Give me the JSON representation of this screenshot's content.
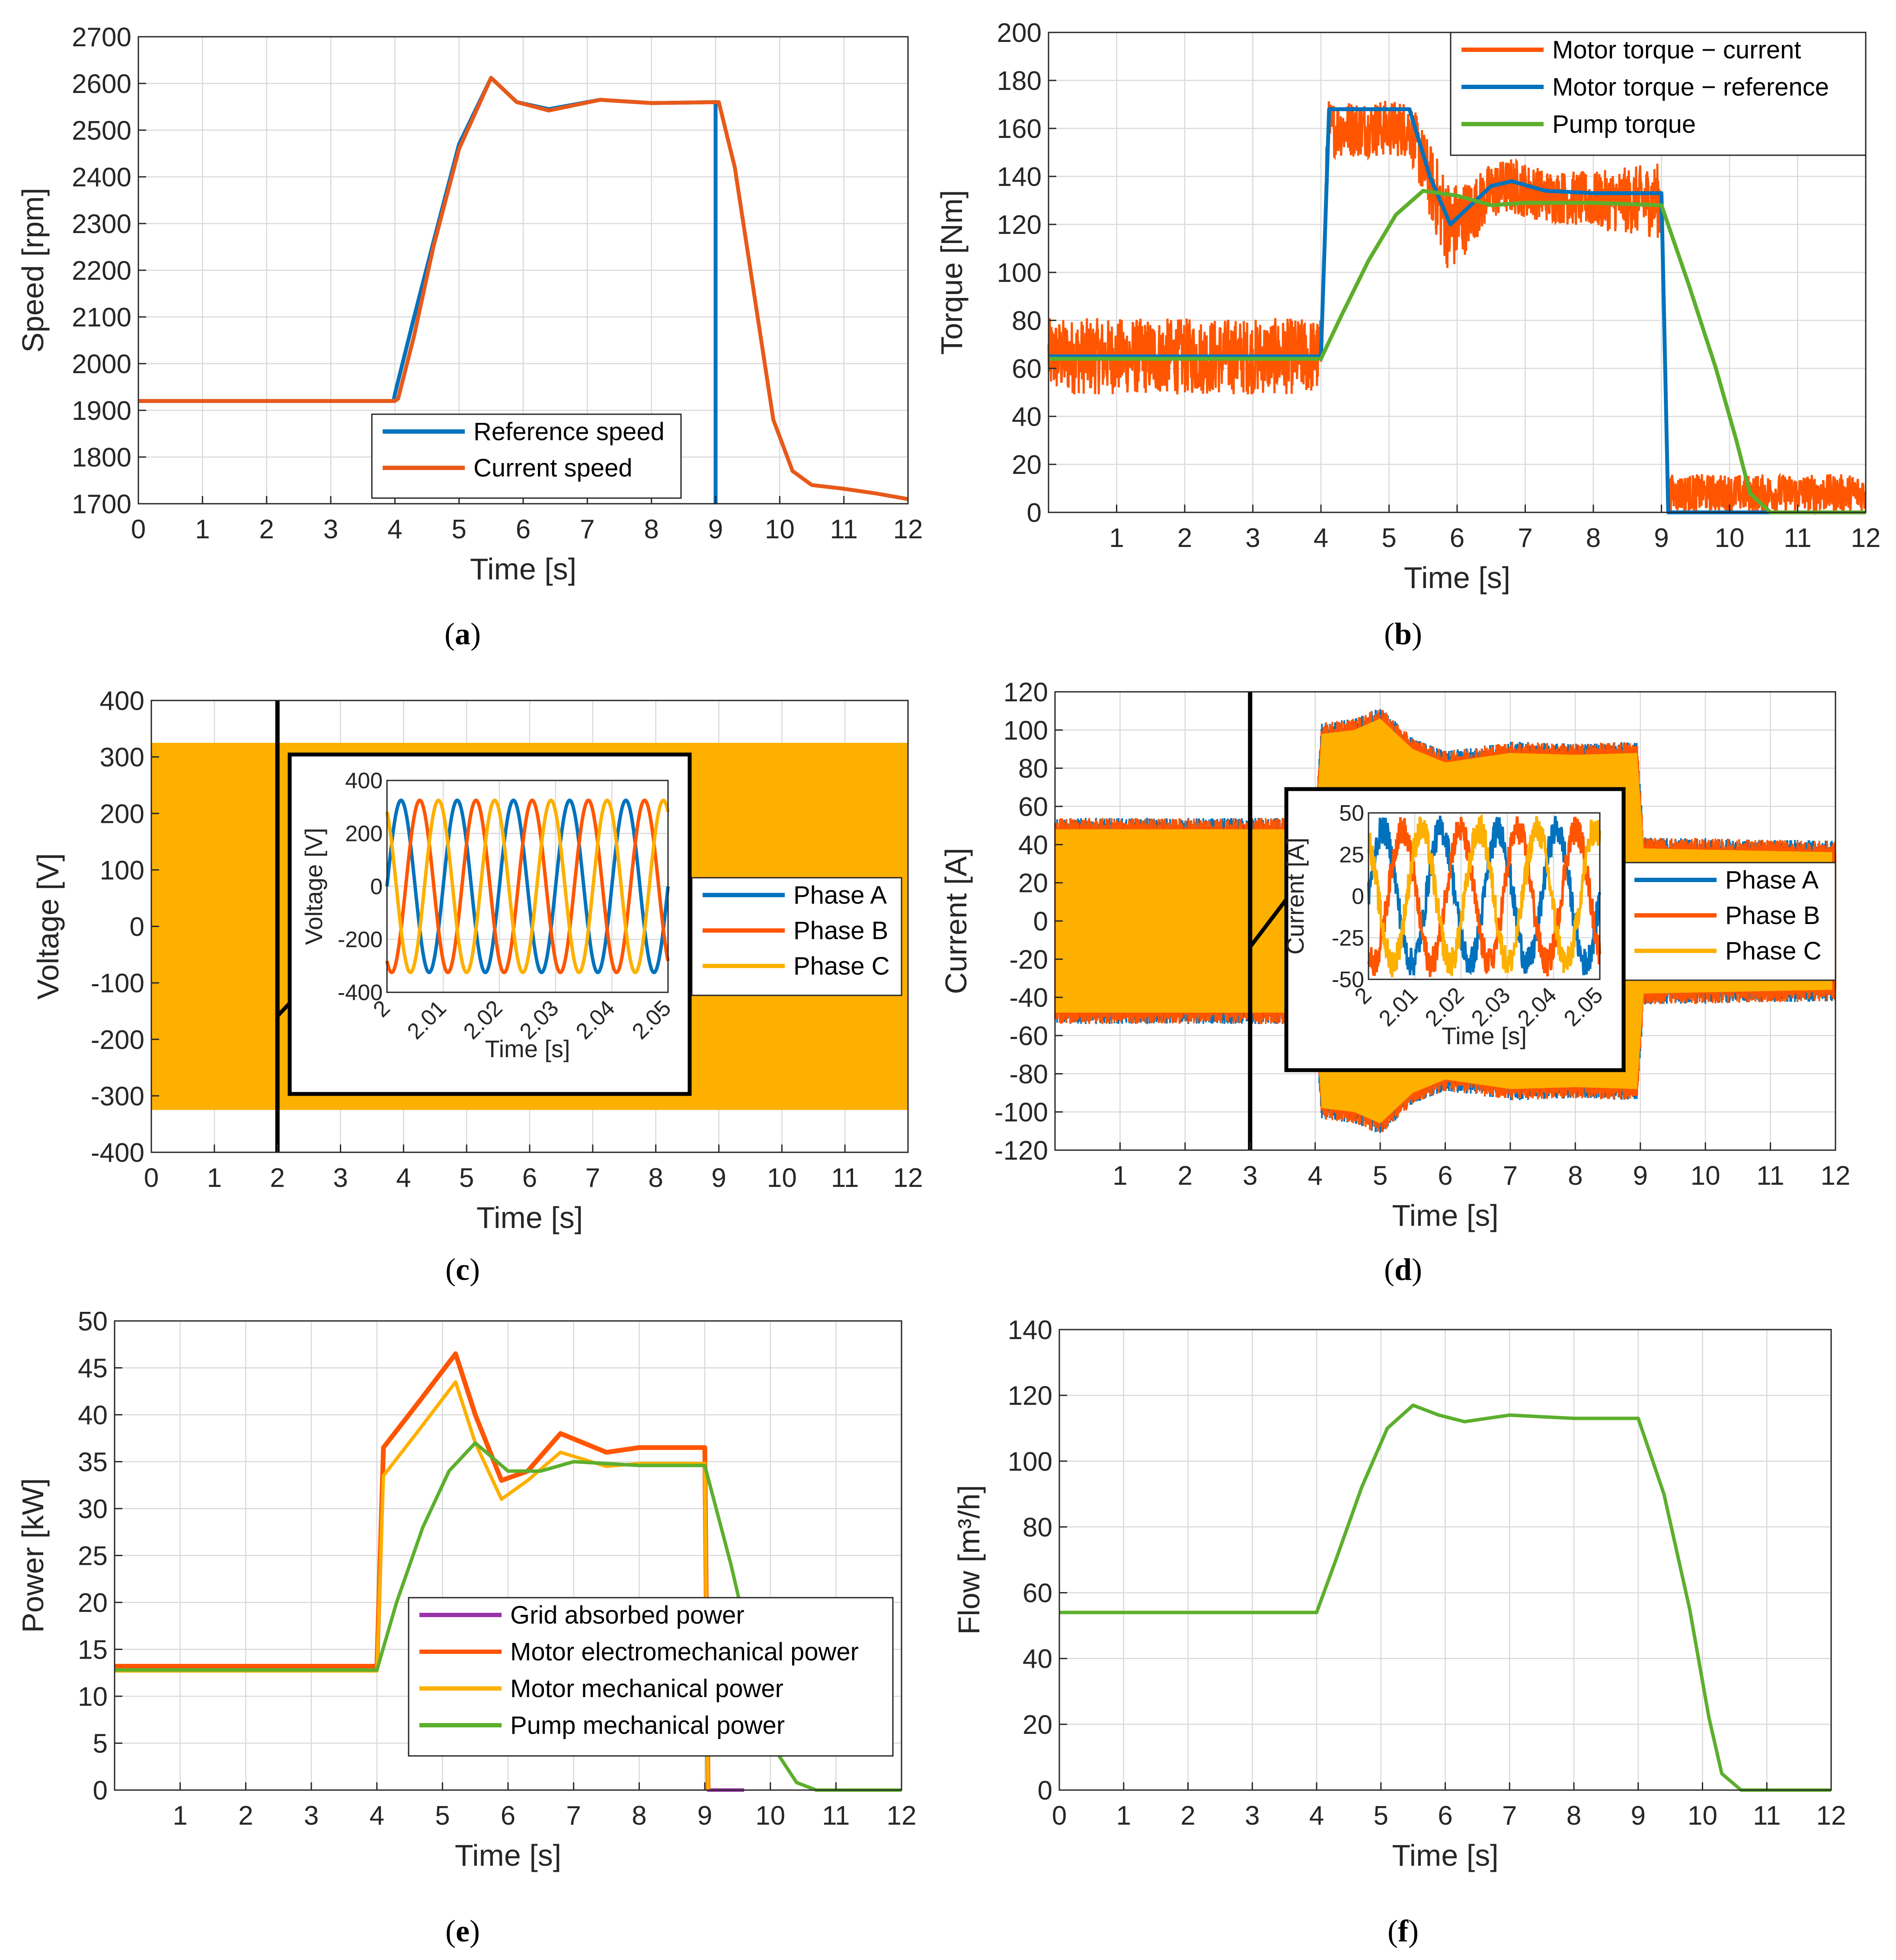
{
  "colors": {
    "blue": "#0072BD",
    "orange": "#FF5500",
    "orange_line": "#E8591A",
    "yellow": "#FDB000",
    "green": "#5CAF2D",
    "purple": "#9933AA"
  },
  "chart_data": [
    {
      "id": "a",
      "type": "line",
      "caption_letter": "a",
      "xlabel": "Time [s]",
      "ylabel": "Speed [rpm]",
      "xlim": [
        0,
        12
      ],
      "ylim": [
        1700,
        2700
      ],
      "xticks": [
        "0",
        "1",
        "2",
        "3",
        "4",
        "5",
        "6",
        "7",
        "8",
        "9",
        "10",
        "11",
        "12"
      ],
      "yticks": [
        "1700",
        "1800",
        "1900",
        "2000",
        "2100",
        "2200",
        "2300",
        "2400",
        "2500",
        "2600",
        "2700"
      ],
      "legend": [
        "Reference speed",
        "Current speed"
      ],
      "series": [
        {
          "name": "Reference speed",
          "color": "blue",
          "x": [
            0,
            3.98,
            4.0,
            4.3,
            4.6,
            5.0,
            5.5,
            5.9,
            6.4,
            7.2,
            8.0,
            9.0,
            9.0,
            9.0
          ],
          "y": [
            1920,
            1920,
            1935,
            2100,
            2260,
            2470,
            2612,
            2560,
            2545,
            2565,
            2558,
            2560,
            2560,
            1700
          ]
        },
        {
          "name": "Current speed",
          "color": "orange_line",
          "x": [
            0,
            4.0,
            4.05,
            4.3,
            4.6,
            5.0,
            5.5,
            5.9,
            6.4,
            7.2,
            8.0,
            9.05,
            9.3,
            9.6,
            9.9,
            10.2,
            10.5,
            11.0,
            11.5,
            12.0
          ],
          "y": [
            1920,
            1920,
            1925,
            2060,
            2250,
            2460,
            2612,
            2560,
            2542,
            2565,
            2558,
            2560,
            2420,
            2150,
            1880,
            1770,
            1740,
            1732,
            1722,
            1710
          ]
        }
      ]
    },
    {
      "id": "b",
      "type": "line",
      "caption_letter": "b",
      "xlabel": "Time [s]",
      "ylabel": "Torque [Nm]",
      "xlim": [
        0,
        12
      ],
      "ylim": [
        0,
        200
      ],
      "xticks": [
        "1",
        "2",
        "3",
        "4",
        "5",
        "6",
        "7",
        "8",
        "9",
        "10",
        "11",
        "12"
      ],
      "yticks": [
        "0",
        "20",
        "40",
        "60",
        "80",
        "100",
        "120",
        "140",
        "160",
        "180",
        "200"
      ],
      "legend": [
        "Motor torque − current",
        "Motor torque − reference",
        "Pump torque"
      ],
      "series": [
        {
          "name": "Motor torque − reference",
          "color": "blue",
          "x": [
            0,
            4.0,
            4.12,
            5.3,
            5.6,
            5.9,
            6.2,
            6.5,
            6.8,
            7.3,
            8.0,
            9.0,
            9.1,
            12.0
          ],
          "y": [
            65,
            65,
            168,
            168,
            140,
            120,
            128,
            136,
            138,
            134,
            133,
            133,
            0,
            0
          ]
        },
        {
          "name": "Pump torque",
          "color": "green",
          "x": [
            0,
            4.0,
            4.3,
            4.7,
            5.1,
            5.5,
            6.0,
            6.5,
            7.0,
            8.0,
            9.0,
            9.4,
            9.8,
            10.1,
            10.3,
            10.6,
            12.0
          ],
          "y": [
            64,
            64,
            82,
            105,
            124,
            134,
            132,
            128,
            129,
            129,
            128,
            95,
            60,
            30,
            8,
            0,
            0
          ]
        }
      ],
      "noise_series": {
        "name": "Motor torque − current",
        "color": "orange",
        "x": [
          0,
          4.0,
          4.1,
          5.3,
          5.6,
          5.9,
          6.2,
          6.5,
          6.8,
          7.3,
          8.0,
          9.0,
          9.1,
          12.0
        ],
        "y": [
          65,
          65,
          160,
          160,
          138,
          118,
          125,
          134,
          136,
          132,
          130,
          130,
          8,
          8
        ],
        "amp": [
          16,
          16,
          12,
          12,
          16,
          20,
          14,
          12,
          12,
          11,
          12,
          16,
          8,
          8
        ]
      }
    },
    {
      "id": "c",
      "type": "line",
      "caption_letter": "c",
      "xlabel": "Time [s]",
      "ylabel": "Voltage [V]",
      "xlim": [
        0,
        12
      ],
      "ylim": [
        -400,
        400
      ],
      "xticks": [
        "0",
        "1",
        "2",
        "3",
        "4",
        "5",
        "6",
        "7",
        "8",
        "9",
        "10",
        "11",
        "12"
      ],
      "yticks": [
        "-400",
        "-300",
        "-200",
        "-100",
        "0",
        "100",
        "200",
        "300",
        "400"
      ],
      "legend": [
        "Phase A",
        "Phase B",
        "Phase C"
      ],
      "band": {
        "ymin": -325,
        "ymax": 325
      },
      "marker_x": 2,
      "inset": {
        "xlabel": "Time [s]",
        "ylabel": "Voltage [V]",
        "xlim": [
          2,
          2.05
        ],
        "ylim": [
          -400,
          400
        ],
        "xticks": [
          "2",
          "2.01",
          "2.02",
          "2.03",
          "2.04",
          "2.05"
        ],
        "yticks": [
          "-400",
          "-200",
          "0",
          "200",
          "400"
        ],
        "amplitude": 325,
        "frequency_hz": 100
      }
    },
    {
      "id": "d",
      "type": "line",
      "caption_letter": "d",
      "xlabel": "Time [s]",
      "ylabel": "Current [A]",
      "xlim": [
        0,
        12
      ],
      "ylim": [
        -120,
        120
      ],
      "xticks": [
        "1",
        "2",
        "3",
        "4",
        "5",
        "6",
        "7",
        "8",
        "9",
        "10",
        "11",
        "12"
      ],
      "yticks": [
        "-120",
        "-100",
        "-80",
        "-60",
        "-40",
        "-20",
        "0",
        "20",
        "40",
        "60",
        "80",
        "100",
        "120"
      ],
      "legend": [
        "Phase A",
        "Phase B",
        "Phase C"
      ],
      "envelope": {
        "x": [
          0,
          4.0,
          4.1,
          4.6,
          5.0,
          5.5,
          6.0,
          7.0,
          8.0,
          8.95,
          9.05,
          12.0
        ],
        "y": [
          50,
          50,
          100,
          102,
          108,
          92,
          85,
          90,
          89,
          90,
          40,
          38
        ]
      },
      "marker_x": 3,
      "inset": {
        "xlabel": "Time [s]",
        "ylabel": "Current [A]",
        "xlim": [
          2,
          2.05
        ],
        "ylim": [
          -50,
          50
        ],
        "xticks": [
          "2",
          "2.01",
          "2.02",
          "2.03",
          "2.04",
          "2.05"
        ],
        "yticks": [
          "-50",
          "-25",
          "0",
          "25",
          "50"
        ],
        "amplitude": 40,
        "frequency_hz": 80
      }
    },
    {
      "id": "e",
      "type": "line",
      "caption_letter": "e",
      "xlabel": "Time [s]",
      "ylabel": "Power [kW]",
      "xlim": [
        0,
        12
      ],
      "ylim": [
        0,
        50
      ],
      "xticks": [
        "1",
        "2",
        "3",
        "4",
        "5",
        "6",
        "7",
        "8",
        "9",
        "10",
        "11",
        "12"
      ],
      "yticks": [
        "0",
        "5",
        "10",
        "15",
        "20",
        "25",
        "30",
        "35",
        "40",
        "45",
        "50"
      ],
      "legend": [
        "Grid absorbed power",
        "Motor electromechanical power",
        "Motor mechanical power",
        "Pump mechanical power"
      ],
      "series": [
        {
          "name": "Grid absorbed power",
          "color": "purple",
          "x": [
            0,
            4.0,
            4.1,
            4.6,
            5.2,
            5.5,
            5.9,
            6.3,
            6.8,
            7.5,
            8.0,
            9.0,
            9.05,
            9.6
          ],
          "y": [
            13.2,
            13.2,
            36.5,
            41,
            46.5,
            40,
            33,
            34,
            38,
            36,
            36.5,
            36.5,
            0,
            0
          ]
        },
        {
          "name": "Motor electromechanical power",
          "color": "orange",
          "x": [
            0,
            4.0,
            4.1,
            4.6,
            5.2,
            5.5,
            5.9,
            6.3,
            6.8,
            7.5,
            8.0,
            9.0,
            9.05
          ],
          "y": [
            13.2,
            13.2,
            36.5,
            41,
            46.5,
            40,
            33,
            34,
            38,
            36,
            36.5,
            36.5,
            0
          ]
        },
        {
          "name": "Motor mechanical power",
          "color": "yellow",
          "x": [
            0,
            4.0,
            4.1,
            4.6,
            5.2,
            5.5,
            5.9,
            6.3,
            6.8,
            7.5,
            8.0,
            9.0,
            9.05
          ],
          "y": [
            12.7,
            12.7,
            33.5,
            38,
            43.5,
            37,
            31,
            33,
            36,
            34.5,
            34.8,
            34.8,
            0
          ]
        },
        {
          "name": "Pump mechanical power",
          "color": "green",
          "x": [
            0,
            4.0,
            4.3,
            4.7,
            5.1,
            5.5,
            6.0,
            6.5,
            7.0,
            8.0,
            9.0,
            9.4,
            9.8,
            10.1,
            10.4,
            10.7,
            12.0
          ],
          "y": [
            12.8,
            12.8,
            20,
            28,
            34,
            37,
            34,
            34,
            35,
            34.6,
            34.6,
            24,
            12,
            4,
            0.8,
            0,
            0
          ]
        }
      ]
    },
    {
      "id": "f",
      "type": "line",
      "caption_letter": "f",
      "xlabel": "Time [s]",
      "ylabel": "Flow [m³/h]",
      "xlim": [
        0,
        12
      ],
      "ylim": [
        0,
        140
      ],
      "xticks": [
        "0",
        "1",
        "2",
        "3",
        "4",
        "5",
        "6",
        "7",
        "8",
        "9",
        "10",
        "11",
        "12"
      ],
      "yticks": [
        "0",
        "20",
        "40",
        "60",
        "80",
        "100",
        "120",
        "140"
      ],
      "legend": [],
      "series": [
        {
          "name": "Flow",
          "color": "green",
          "x": [
            0,
            4.0,
            4.3,
            4.7,
            5.1,
            5.5,
            5.9,
            6.3,
            7.0,
            8.0,
            9.0,
            9.4,
            9.8,
            10.1,
            10.3,
            10.6,
            12.0
          ],
          "y": [
            54,
            54,
            70,
            92,
            110,
            117,
            114,
            112,
            114,
            113,
            113,
            90,
            55,
            22,
            5,
            0,
            0
          ]
        }
      ]
    }
  ]
}
